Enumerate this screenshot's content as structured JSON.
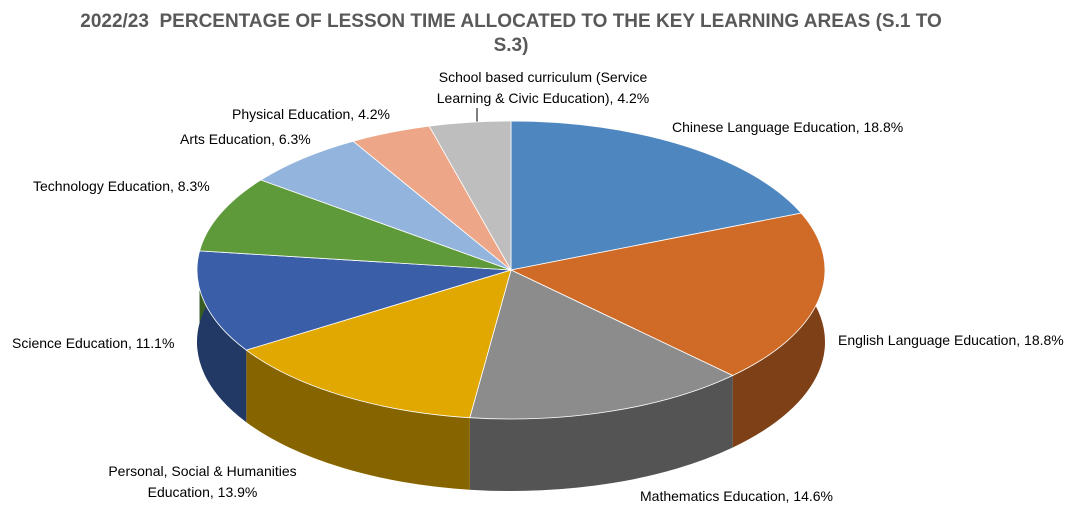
{
  "chart_data": {
    "type": "pie3d",
    "title": "2022/23  PERCENTAGE OF LESSON TIME ALLOCATED TO THE KEY LEARNING AREAS (S.1 TO S.3)",
    "categories": [
      "Chinese Language Education",
      "English Language Education",
      "Mathematics Education",
      "Personal, Social & Humanities Education",
      "Science Education",
      "Technology Education",
      "Arts Education",
      "Physical Education",
      "School based curriculum (Service Learning & Civic Education)"
    ],
    "values": [
      18.8,
      18.8,
      14.6,
      13.9,
      11.1,
      8.3,
      6.3,
      4.2,
      4.2
    ],
    "value_labels": [
      "18.8%",
      "18.8%",
      "14.6%",
      "13.9%",
      "11.1%",
      "8.3%",
      "6.3%",
      "4.2%",
      "4.2%"
    ],
    "colors": [
      "#4e86bf",
      "#d06b27",
      "#8c8c8c",
      "#e0a800",
      "#3a5fa8",
      "#5f9a3a",
      "#93b4dd",
      "#eda788",
      "#bebebe"
    ]
  }
}
